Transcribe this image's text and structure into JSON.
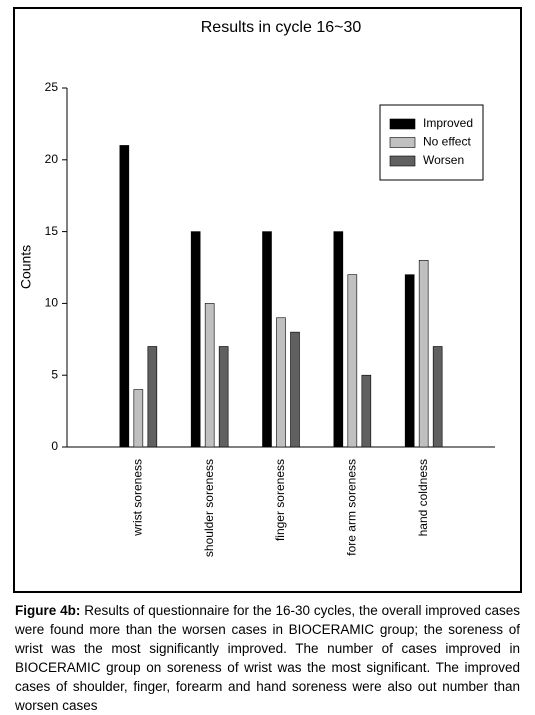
{
  "chart_data": {
    "type": "bar",
    "title": "Results in cycle 16~30",
    "y_label": "Counts",
    "categories": [
      "wrist soreness",
      "shoulder soreness",
      "finger soreness",
      "fore arm soreness",
      "hand coldness"
    ],
    "series": [
      {
        "name": "Improved",
        "color": "#000000",
        "values": [
          21,
          15,
          15,
          15,
          12
        ]
      },
      {
        "name": "No effect",
        "color": "#c0c0c0",
        "values": [
          4,
          10,
          9,
          12,
          13
        ]
      },
      {
        "name": "Worsen",
        "color": "#606060",
        "values": [
          7,
          7,
          8,
          5,
          7
        ]
      }
    ],
    "ylim": [
      0,
      25
    ],
    "yticks": [
      0,
      5,
      10,
      15,
      20,
      25
    ],
    "grid": false,
    "legend": "upper-right"
  },
  "caption": {
    "label": "Figure 4b:",
    "text": "Results of questionnaire for the 16-30 cycles, the overall improved cases were found more than the worsen cases in BIOCERAMIC group; the soreness of wrist was the most significantly improved. The number of cases improved in BIOCERAMIC group on soreness of wrist was the most significant. The improved cases of shoulder, finger, forearm and hand soreness were also out number than worsen cases"
  }
}
